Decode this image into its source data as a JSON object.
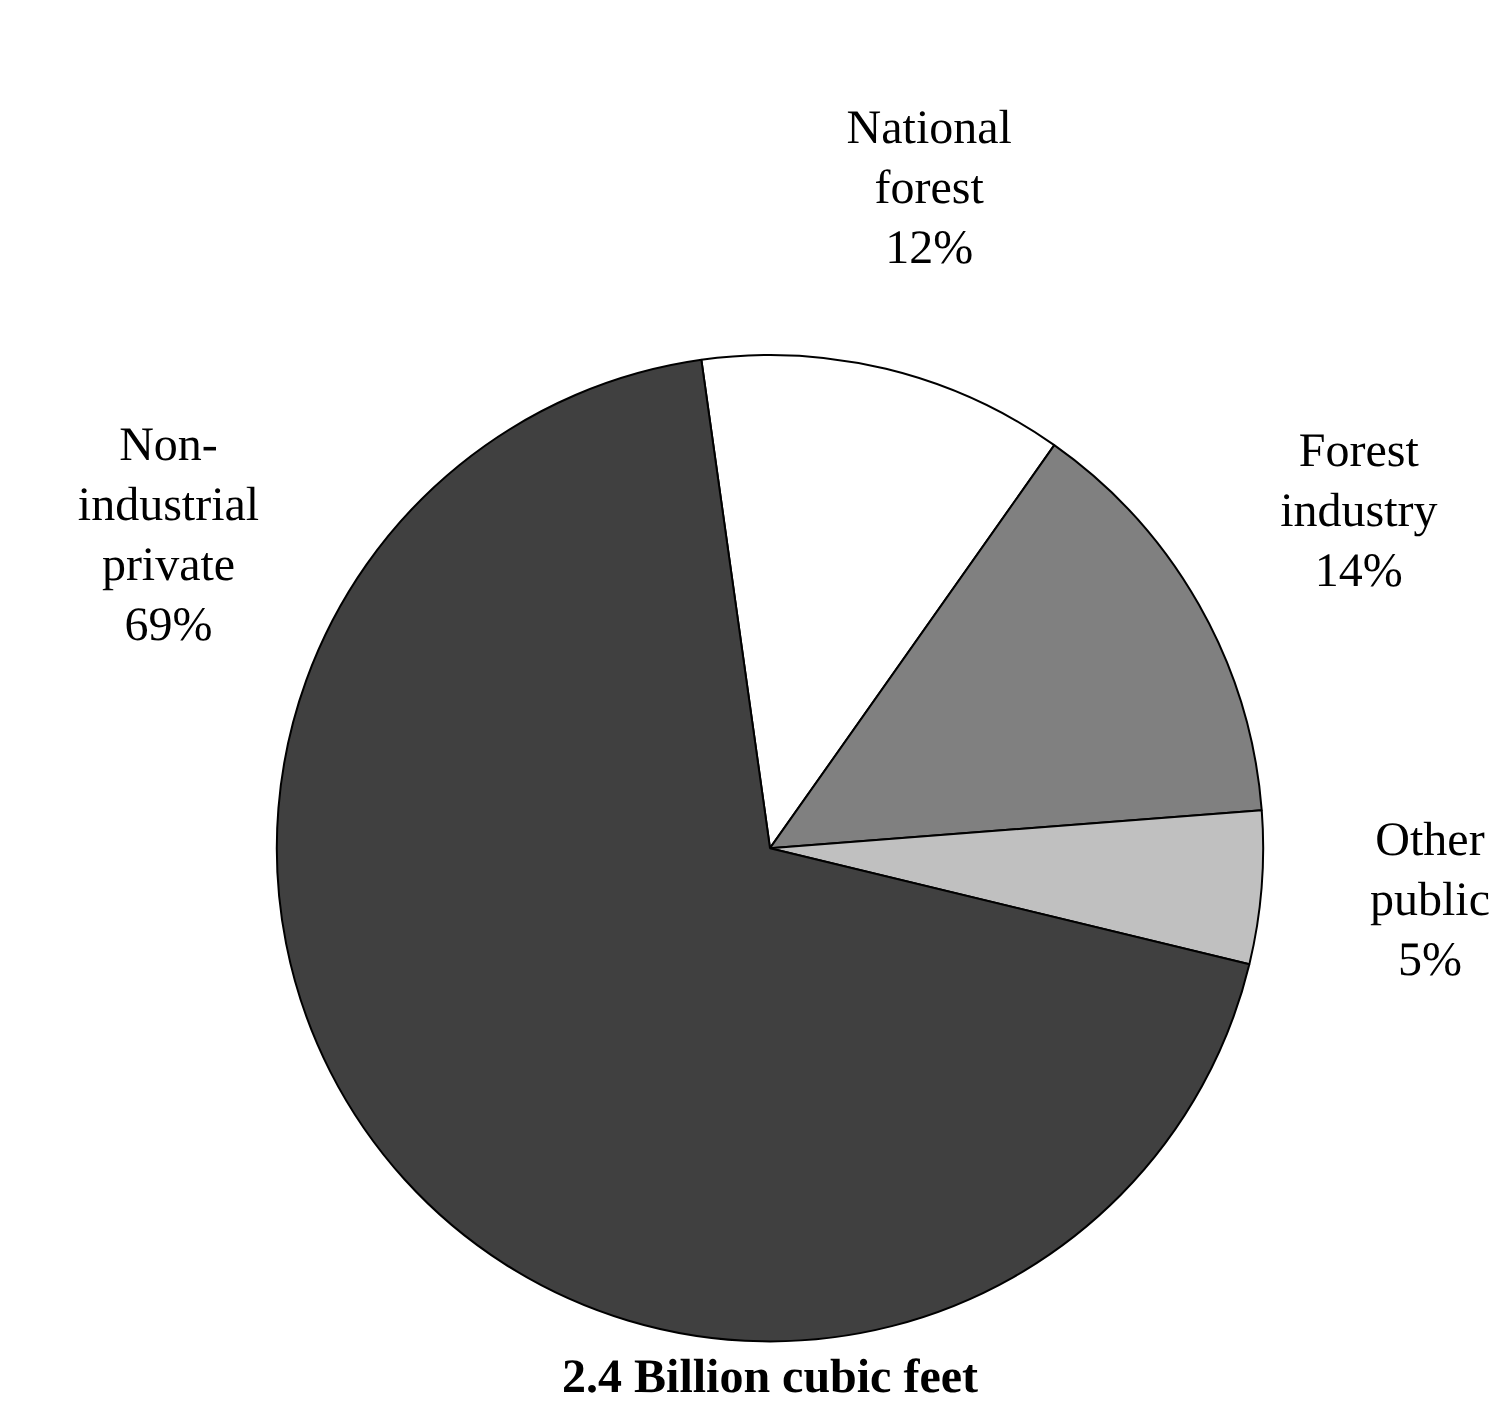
{
  "chart_data": {
    "type": "pie",
    "title": "2.4 Billion cubic feet",
    "categories": [
      "National forest",
      "Forest industry",
      "Other public",
      "Non-industrial private"
    ],
    "values": [
      12,
      14,
      5,
      69
    ],
    "colors": [
      "#ffffff",
      "#808080",
      "#c0c0c0",
      "#404040"
    ],
    "value_labels": [
      "12%",
      "14%",
      "5%",
      "69%"
    ],
    "legend": false
  }
}
